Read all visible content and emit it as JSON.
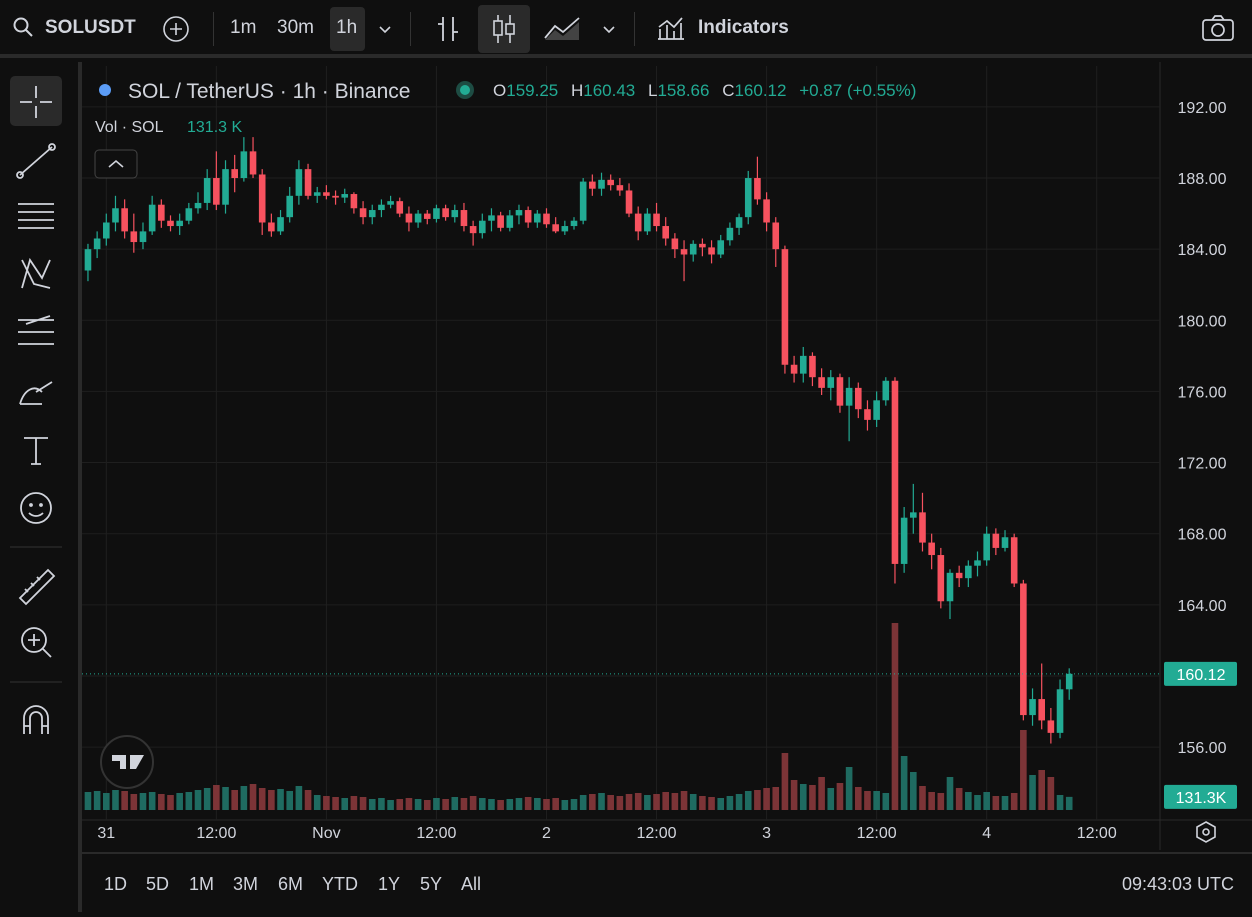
{
  "toolbar": {
    "symbol": "SOLUSDT",
    "intervals": [
      "1m",
      "30m",
      "1h"
    ],
    "indicators": "Indicators"
  },
  "legend": {
    "title": "SOL / TetherUS · 1h · Binance",
    "open_label": "O",
    "open": "159.25",
    "high_label": "H",
    "high": "160.43",
    "low_label": "L",
    "low": "158.66",
    "close_label": "C",
    "close": "160.12",
    "change": "+0.87 (+0.55%)",
    "volume_title": "Vol · SOL",
    "volume": "131.3 K"
  },
  "chart_data": {
    "type": "candlestick",
    "open": [
      182.8,
      184.0,
      184.6,
      185.5,
      186.3,
      185.0,
      184.4,
      185.0,
      186.5,
      185.6,
      185.3,
      185.6,
      186.3,
      186.6,
      188.0,
      186.5,
      188.5,
      188.0,
      189.5,
      188.2,
      185.5,
      185.0,
      185.8,
      187.0,
      188.5,
      187.0,
      187.2,
      187.0,
      186.9,
      187.1,
      186.3,
      185.8,
      186.2,
      186.5,
      186.7,
      186.0,
      185.5,
      186.0,
      185.7,
      186.3,
      185.8,
      186.2,
      185.3,
      184.9,
      185.6,
      185.9,
      185.2,
      185.9,
      186.2,
      185.5,
      186.0,
      185.4,
      185.0,
      185.3,
      185.6,
      187.8,
      187.4,
      187.9,
      187.6,
      187.3,
      186.0,
      185.0,
      186.0,
      185.3,
      184.6,
      184.0,
      183.7,
      184.3,
      184.1,
      183.7,
      184.5,
      185.2,
      185.8,
      188.0,
      186.8,
      185.5,
      184.0,
      177.5,
      177.0,
      178.0,
      176.8,
      176.2,
      176.8,
      175.2,
      176.2,
      175.0,
      174.4,
      175.5,
      176.6,
      166.3,
      168.9,
      169.2,
      167.5,
      166.8,
      164.2,
      165.8,
      165.5,
      166.2,
      166.5,
      168.0,
      167.2,
      167.8,
      165.2,
      157.8,
      158.7,
      157.5,
      156.8,
      159.25
    ],
    "high": [
      184.3,
      185.0,
      186.0,
      187.0,
      186.8,
      186.0,
      185.5,
      187.0,
      186.8,
      185.9,
      186.0,
      186.6,
      187.2,
      188.5,
      189.5,
      189.0,
      189.3,
      190.3,
      190.3,
      188.5,
      186.0,
      186.2,
      187.5,
      189.0,
      188.8,
      187.5,
      187.6,
      187.3,
      187.4,
      187.2,
      186.7,
      186.5,
      186.8,
      187.0,
      186.9,
      186.4,
      186.2,
      186.2,
      186.5,
      186.5,
      186.5,
      186.6,
      185.6,
      186.0,
      186.3,
      186.1,
      186.2,
      186.5,
      186.4,
      186.2,
      186.3,
      185.8,
      185.6,
      185.8,
      188.0,
      188.2,
      188.3,
      188.2,
      188.0,
      187.7,
      186.4,
      186.3,
      186.6,
      185.8,
      184.9,
      184.5,
      184.5,
      184.6,
      184.5,
      184.8,
      185.5,
      186.0,
      188.4,
      189.2,
      187.2,
      185.8,
      184.2,
      178.0,
      178.5,
      178.2,
      177.3,
      177.2,
      177.0,
      176.8,
      176.5,
      175.5,
      176.0,
      176.8,
      176.8,
      169.5,
      170.8,
      170.3,
      168.0,
      167.2,
      166.0,
      166.2,
      166.5,
      167.0,
      168.4,
      168.3,
      168.2,
      168.0,
      165.4,
      159.3,
      160.7,
      158.2,
      159.8,
      160.43
    ],
    "low": [
      182.2,
      183.5,
      184.2,
      185.0,
      184.6,
      183.8,
      184.0,
      184.8,
      185.2,
      185.0,
      184.8,
      185.4,
      186.0,
      186.2,
      186.2,
      186.0,
      187.2,
      187.8,
      188.0,
      184.8,
      184.7,
      184.8,
      185.5,
      186.5,
      186.8,
      186.6,
      186.8,
      186.5,
      186.6,
      186.0,
      185.4,
      185.4,
      185.8,
      186.3,
      185.8,
      185.0,
      185.2,
      185.4,
      185.5,
      185.6,
      185.5,
      185.0,
      184.2,
      184.6,
      185.0,
      185.0,
      185.0,
      185.4,
      185.2,
      185.2,
      185.2,
      184.9,
      184.8,
      185.1,
      185.4,
      187.0,
      187.0,
      187.3,
      187.0,
      185.8,
      184.5,
      184.8,
      185.0,
      184.2,
      183.5,
      182.2,
      183.3,
      183.6,
      183.2,
      183.5,
      184.2,
      184.8,
      185.4,
      186.5,
      185.0,
      183.0,
      177.0,
      176.5,
      176.5,
      176.3,
      175.8,
      175.5,
      174.8,
      173.2,
      174.5,
      173.8,
      174.0,
      175.2,
      165.2,
      165.8,
      168.0,
      167.0,
      166.0,
      163.8,
      163.2,
      165.0,
      165.0,
      165.6,
      166.2,
      166.8,
      167.0,
      165.0,
      157.5,
      157.2,
      157.0,
      156.2,
      156.5,
      158.66
    ],
    "close": [
      184.0,
      184.6,
      185.5,
      186.3,
      185.0,
      184.4,
      185.0,
      186.5,
      185.6,
      185.3,
      185.6,
      186.3,
      186.6,
      188.0,
      186.5,
      188.5,
      188.0,
      189.5,
      188.2,
      185.5,
      185.0,
      185.8,
      187.0,
      188.5,
      187.0,
      187.2,
      187.0,
      186.9,
      187.1,
      186.3,
      185.8,
      186.2,
      186.5,
      186.7,
      186.0,
      185.5,
      186.0,
      185.7,
      186.3,
      185.8,
      186.2,
      185.3,
      184.9,
      185.6,
      185.9,
      185.2,
      185.9,
      186.2,
      185.5,
      186.0,
      185.4,
      185.0,
      185.3,
      185.6,
      187.8,
      187.4,
      187.9,
      187.6,
      187.3,
      186.0,
      185.0,
      186.0,
      185.3,
      184.6,
      184.0,
      183.7,
      184.3,
      184.1,
      183.7,
      184.5,
      185.2,
      185.8,
      188.0,
      186.8,
      185.5,
      184.0,
      177.5,
      177.0,
      178.0,
      176.8,
      176.2,
      176.8,
      175.2,
      176.2,
      175.0,
      174.4,
      175.5,
      176.6,
      166.3,
      168.9,
      169.2,
      167.5,
      166.8,
      164.2,
      165.8,
      165.5,
      166.2,
      166.5,
      168.0,
      167.2,
      167.8,
      165.2,
      157.8,
      158.7,
      157.5,
      156.8,
      159.25,
      160.12
    ],
    "volume": [
      180,
      190,
      170,
      200,
      190,
      160,
      170,
      180,
      160,
      150,
      170,
      180,
      200,
      220,
      250,
      230,
      200,
      240,
      260,
      220,
      200,
      210,
      190,
      240,
      200,
      150,
      140,
      130,
      120,
      140,
      130,
      110,
      120,
      100,
      110,
      120,
      110,
      100,
      120,
      110,
      130,
      120,
      140,
      120,
      110,
      100,
      110,
      120,
      130,
      120,
      110,
      120,
      100,
      110,
      150,
      160,
      170,
      150,
      140,
      160,
      170,
      150,
      160,
      180,
      170,
      190,
      160,
      140,
      130,
      120,
      140,
      160,
      190,
      200,
      220,
      230,
      570,
      300,
      260,
      250,
      330,
      220,
      270,
      430,
      230,
      190,
      190,
      170,
      1870,
      540,
      380,
      240,
      180,
      170,
      330,
      220,
      180,
      150,
      180,
      140,
      140,
      170,
      800,
      350,
      400,
      330,
      150,
      131.3
    ],
    "up_color": "#22ab94",
    "down_color": "#f7525f",
    "volume_up_color": "#1f6b61",
    "volume_down_color": "#7c3437",
    "xlim": [
      -0.65,
      116.9
    ],
    "xticks": [
      {
        "value": 2,
        "label": "31"
      },
      {
        "value": 14,
        "label": "12:00"
      },
      {
        "value": 26,
        "label": "Nov"
      },
      {
        "value": 38,
        "label": "12:00"
      },
      {
        "value": 50,
        "label": "2"
      },
      {
        "value": 62,
        "label": "12:00"
      },
      {
        "value": 74,
        "label": "3"
      },
      {
        "value": 86,
        "label": "12:00"
      },
      {
        "value": 98,
        "label": "4"
      },
      {
        "value": 110,
        "label": "12:00"
      }
    ],
    "ylim": [
      151.9,
      194.3
    ],
    "yticks": [
      {
        "value": 156,
        "label": "156.00"
      },
      {
        "value": 160,
        "label": "160.00"
      },
      {
        "value": 164,
        "label": "164.00"
      },
      {
        "value": 168,
        "label": "168.00"
      },
      {
        "value": 172,
        "label": "172.00"
      },
      {
        "value": 176,
        "label": "176.00"
      },
      {
        "value": 180,
        "label": "180.00"
      },
      {
        "value": 184,
        "label": "184.00"
      },
      {
        "value": 188,
        "label": "188.00"
      },
      {
        "value": 192,
        "label": "192.00"
      }
    ],
    "grid": true,
    "last_price": {
      "value": 160.12,
      "label": "160.12"
    },
    "last_volume": {
      "value": 131.3,
      "label": "131.3K"
    }
  },
  "range_bar": {
    "ranges": [
      "1D",
      "5D",
      "1M",
      "3M",
      "6M",
      "YTD",
      "1Y",
      "5Y",
      "All"
    ],
    "clock": "09:43:03 UTC"
  }
}
